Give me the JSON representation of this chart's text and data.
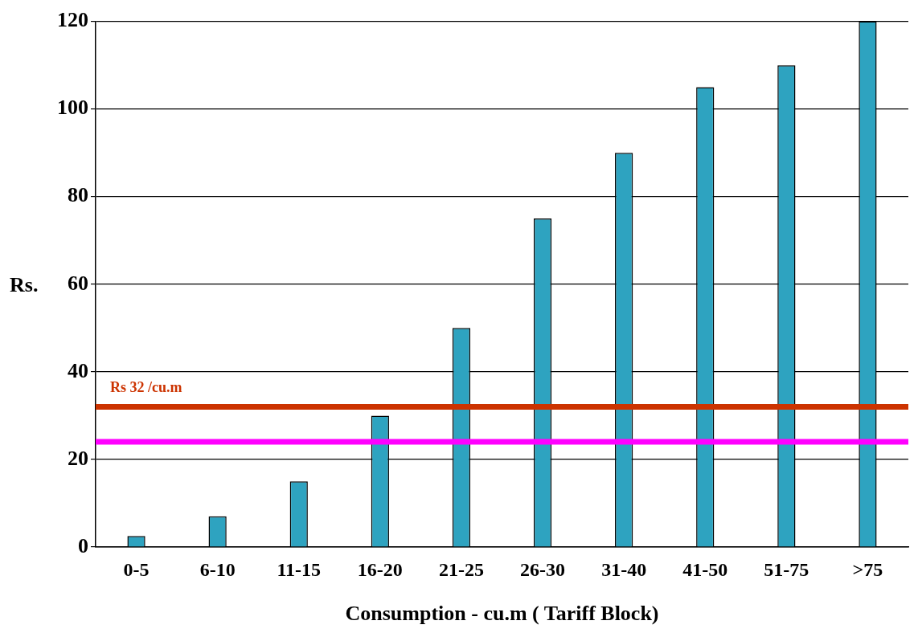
{
  "chart_data": {
    "type": "bar",
    "xlabel": "Consumption - cu.m ( Tariff Block)",
    "ylabel": "Rs.",
    "categories": [
      "0-5",
      "6-10",
      "11-15",
      "16-20",
      "21-25",
      "26-30",
      "31-40",
      "41-50",
      "51-75",
      ">75"
    ],
    "values": [
      2.5,
      7,
      15,
      30,
      50,
      75,
      90,
      105,
      110,
      120
    ],
    "color": "#2ea3c0",
    "ylim": [
      0,
      120
    ],
    "yticks": [
      0,
      20,
      40,
      60,
      80,
      100,
      120
    ],
    "grid": "y",
    "ref_lines": [
      {
        "axis": "y",
        "value": 32,
        "label": "Rs 32 /cu.m",
        "color": "#cc3300"
      },
      {
        "axis": "y",
        "value": 24,
        "label": null,
        "color": "#ff00ff"
      }
    ]
  }
}
